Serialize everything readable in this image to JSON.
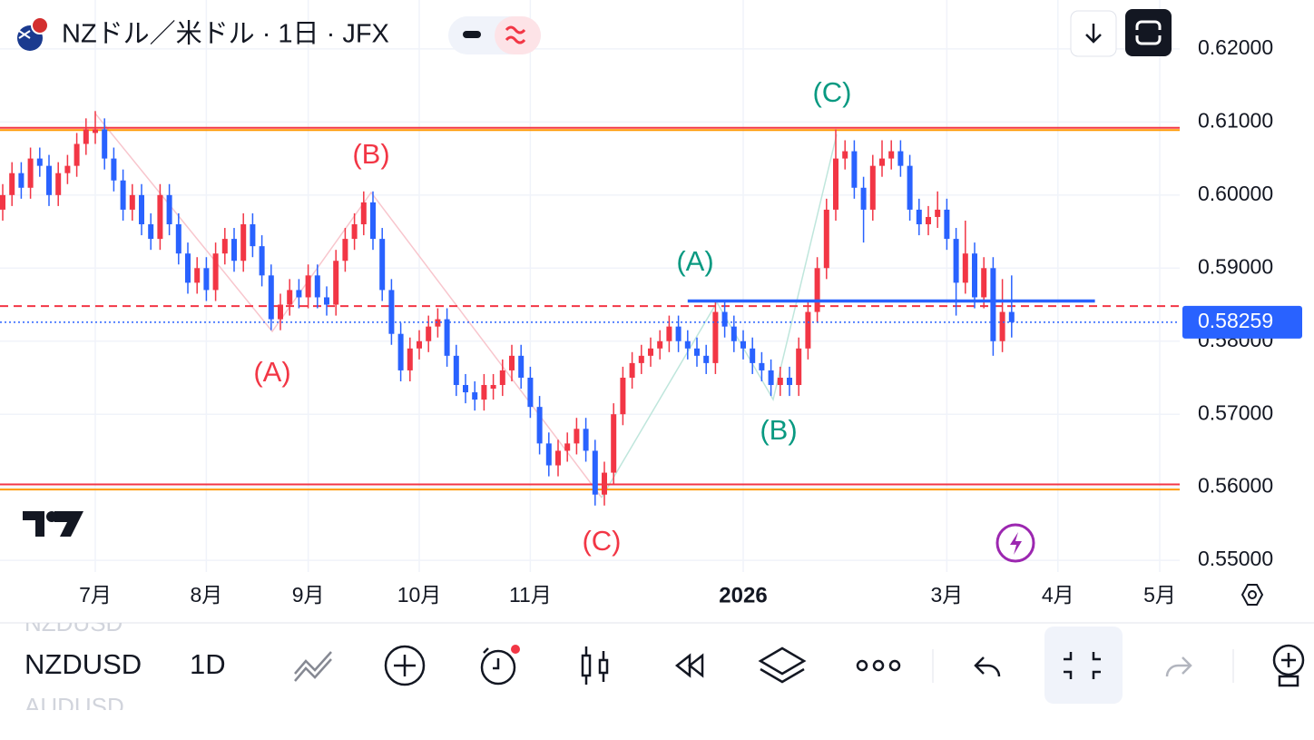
{
  "header": {
    "title": "NZドル／米ドル · 1日 · JFX"
  },
  "toolbar": {
    "prev_symbol": "NZDUSD",
    "symbol": "NZDUSD",
    "next_symbol": "AUDUSD",
    "interval": "1D"
  },
  "chart_data": {
    "type": "candlestick",
    "up_color": "#f23645",
    "down_color": "#2962ff",
    "grid": true,
    "ylim": [
      0.5484,
      0.6267
    ],
    "yticks": [
      {
        "value": 0.55,
        "label": "0.55000"
      },
      {
        "value": 0.56,
        "label": "0.56000"
      },
      {
        "value": 0.57,
        "label": "0.57000"
      },
      {
        "value": 0.58,
        "label": "0.58000"
      },
      {
        "value": 0.59,
        "label": "0.59000"
      },
      {
        "value": 0.6,
        "label": "0.60000"
      },
      {
        "value": 0.61,
        "label": "0.61000"
      },
      {
        "value": 0.62,
        "label": "0.62000"
      }
    ],
    "last_price": 0.58259,
    "categories": [
      null,
      null,
      null,
      null,
      null,
      null,
      null,
      null,
      null,
      null,
      "7月",
      null,
      null,
      null,
      null,
      null,
      null,
      null,
      null,
      null,
      null,
      null,
      "8月",
      null,
      null,
      null,
      null,
      null,
      null,
      null,
      null,
      null,
      null,
      "9月",
      null,
      null,
      null,
      null,
      null,
      null,
      null,
      null,
      null,
      null,
      null,
      "10月",
      null,
      null,
      null,
      null,
      null,
      null,
      null,
      null,
      null,
      null,
      null,
      "11月",
      null,
      null,
      null,
      null,
      null,
      null,
      null,
      null,
      null,
      null,
      null,
      null,
      null,
      null,
      null,
      null,
      null,
      null,
      null,
      null,
      null,
      null,
      "2026",
      null,
      null,
      null,
      null,
      null,
      null,
      null,
      null,
      null,
      null,
      null,
      null,
      null,
      null,
      null,
      null,
      null,
      null,
      null,
      null,
      null,
      "3月",
      null,
      null,
      null,
      null,
      null,
      null,
      null,
      null,
      null,
      null,
      null,
      "4月",
      null,
      null,
      null,
      null,
      null,
      null,
      null,
      null,
      null,
      null,
      "5月"
    ],
    "candles": [
      [
        0.598,
        0.6015,
        0.5965,
        0.6
      ],
      [
        0.6,
        0.6045,
        0.5985,
        0.603
      ],
      [
        0.603,
        0.6045,
        0.5995,
        0.601
      ],
      [
        0.601,
        0.6065,
        0.5995,
        0.605
      ],
      [
        0.605,
        0.6065,
        0.6025,
        0.604
      ],
      [
        0.604,
        0.6055,
        0.5985,
        0.6
      ],
      [
        0.6,
        0.6045,
        0.5985,
        0.603
      ],
      [
        0.603,
        0.6055,
        0.6015,
        0.604
      ],
      [
        0.604,
        0.6085,
        0.6025,
        0.607
      ],
      [
        0.607,
        0.6105,
        0.6055,
        0.609
      ],
      [
        0.6085,
        0.6115,
        0.607,
        0.609
      ],
      [
        0.609,
        0.6105,
        0.6035,
        0.605
      ],
      [
        0.605,
        0.6065,
        0.6005,
        0.602
      ],
      [
        0.602,
        0.6035,
        0.5965,
        0.598
      ],
      [
        0.598,
        0.6015,
        0.5965,
        0.6
      ],
      [
        0.6,
        0.6015,
        0.5945,
        0.596
      ],
      [
        0.596,
        0.5975,
        0.5925,
        0.594
      ],
      [
        0.594,
        0.6015,
        0.5925,
        0.6
      ],
      [
        0.6,
        0.6015,
        0.5945,
        0.596
      ],
      [
        0.596,
        0.5975,
        0.5905,
        0.592
      ],
      [
        0.592,
        0.5935,
        0.5865,
        0.588
      ],
      [
        0.588,
        0.5915,
        0.5865,
        0.59
      ],
      [
        0.59,
        0.5915,
        0.5855,
        0.587
      ],
      [
        0.587,
        0.5935,
        0.5855,
        0.592
      ],
      [
        0.592,
        0.5955,
        0.5905,
        0.594
      ],
      [
        0.594,
        0.5955,
        0.5895,
        0.591
      ],
      [
        0.591,
        0.5975,
        0.5895,
        0.596
      ],
      [
        0.596,
        0.5975,
        0.5915,
        0.593
      ],
      [
        0.593,
        0.5945,
        0.5875,
        0.589
      ],
      [
        0.589,
        0.5905,
        0.5815,
        0.583
      ],
      [
        0.583,
        0.5865,
        0.5815,
        0.585
      ],
      [
        0.585,
        0.5885,
        0.5835,
        0.587
      ],
      [
        0.587,
        0.5885,
        0.5845,
        0.586
      ],
      [
        0.586,
        0.5905,
        0.5845,
        0.589
      ],
      [
        0.589,
        0.5905,
        0.5845,
        0.586
      ],
      [
        0.586,
        0.5875,
        0.5835,
        0.585
      ],
      [
        0.585,
        0.5925,
        0.5835,
        0.591
      ],
      [
        0.591,
        0.5955,
        0.5895,
        0.594
      ],
      [
        0.594,
        0.5975,
        0.5925,
        0.596
      ],
      [
        0.596,
        0.6005,
        0.5945,
        0.599
      ],
      [
        0.599,
        0.6005,
        0.5925,
        0.594
      ],
      [
        0.594,
        0.5955,
        0.5855,
        0.587
      ],
      [
        0.587,
        0.5885,
        0.5795,
        0.581
      ],
      [
        0.581,
        0.5825,
        0.5745,
        0.576
      ],
      [
        0.576,
        0.5805,
        0.5745,
        0.579
      ],
      [
        0.579,
        0.5815,
        0.5775,
        0.58
      ],
      [
        0.58,
        0.5835,
        0.5785,
        0.582
      ],
      [
        0.582,
        0.5845,
        0.5805,
        0.583
      ],
      [
        0.583,
        0.5845,
        0.5765,
        0.578
      ],
      [
        0.578,
        0.5795,
        0.5725,
        0.574
      ],
      [
        0.574,
        0.5755,
        0.5715,
        0.573
      ],
      [
        0.573,
        0.5745,
        0.5705,
        0.572
      ],
      [
        0.572,
        0.5755,
        0.5705,
        0.574
      ],
      [
        0.5735,
        0.5755,
        0.572,
        0.574
      ],
      [
        0.574,
        0.5775,
        0.5725,
        0.576
      ],
      [
        0.576,
        0.5795,
        0.5745,
        0.578
      ],
      [
        0.578,
        0.5795,
        0.5735,
        0.575
      ],
      [
        0.575,
        0.5765,
        0.5695,
        0.571
      ],
      [
        0.571,
        0.5725,
        0.5645,
        0.566
      ],
      [
        0.566,
        0.5675,
        0.5615,
        0.563
      ],
      [
        0.563,
        0.5665,
        0.5615,
        0.565
      ],
      [
        0.565,
        0.5675,
        0.5635,
        0.566
      ],
      [
        0.566,
        0.5695,
        0.5645,
        0.568
      ],
      [
        0.568,
        0.5695,
        0.5635,
        0.565
      ],
      [
        0.565,
        0.5665,
        0.5575,
        0.559
      ],
      [
        0.559,
        0.5635,
        0.5575,
        0.562
      ],
      [
        0.562,
        0.5715,
        0.5605,
        0.57
      ],
      [
        0.57,
        0.5765,
        0.5685,
        0.575
      ],
      [
        0.575,
        0.5785,
        0.5735,
        0.577
      ],
      [
        0.577,
        0.5795,
        0.5755,
        0.578
      ],
      [
        0.578,
        0.5805,
        0.5765,
        0.579
      ],
      [
        0.579,
        0.5815,
        0.5775,
        0.58
      ],
      [
        0.58,
        0.5835,
        0.5785,
        0.582
      ],
      [
        0.582,
        0.5835,
        0.5785,
        0.58
      ],
      [
        0.58,
        0.5815,
        0.5775,
        0.579
      ],
      [
        0.579,
        0.5805,
        0.5765,
        0.578
      ],
      [
        0.578,
        0.5795,
        0.5755,
        0.577
      ],
      [
        0.577,
        0.5855,
        0.5755,
        0.584
      ],
      [
        0.584,
        0.5855,
        0.5805,
        0.582
      ],
      [
        0.582,
        0.5835,
        0.5785,
        0.58
      ],
      [
        0.58,
        0.5815,
        0.5775,
        0.579
      ],
      [
        0.579,
        0.5805,
        0.5755,
        0.577
      ],
      [
        0.577,
        0.5785,
        0.5745,
        0.576
      ],
      [
        0.576,
        0.5775,
        0.5725,
        0.574
      ],
      [
        0.574,
        0.5765,
        0.5725,
        0.575
      ],
      [
        0.575,
        0.5765,
        0.5725,
        0.574
      ],
      [
        0.574,
        0.5805,
        0.5725,
        0.579
      ],
      [
        0.579,
        0.5855,
        0.5775,
        0.584
      ],
      [
        0.584,
        0.5915,
        0.5825,
        0.59
      ],
      [
        0.59,
        0.5995,
        0.5885,
        0.598
      ],
      [
        0.598,
        0.609,
        0.5965,
        0.605
      ],
      [
        0.605,
        0.6075,
        0.6035,
        0.606
      ],
      [
        0.606,
        0.6075,
        0.5995,
        0.601
      ],
      [
        0.601,
        0.6025,
        0.5935,
        0.598
      ],
      [
        0.598,
        0.6055,
        0.5965,
        0.604
      ],
      [
        0.604,
        0.6075,
        0.6025,
        0.605
      ],
      [
        0.605,
        0.6075,
        0.6035,
        0.606
      ],
      [
        0.606,
        0.6075,
        0.6025,
        0.604
      ],
      [
        0.604,
        0.6055,
        0.5965,
        0.598
      ],
      [
        0.598,
        0.5995,
        0.5945,
        0.596
      ],
      [
        0.596,
        0.5985,
        0.5945,
        0.597
      ],
      [
        0.597,
        0.6005,
        0.5955,
        0.598
      ],
      [
        0.598,
        0.5995,
        0.5925,
        0.594
      ],
      [
        0.594,
        0.5955,
        0.5835,
        0.588
      ],
      [
        0.588,
        0.5965,
        0.5865,
        0.592
      ],
      [
        0.592,
        0.5935,
        0.5845,
        0.586
      ],
      [
        0.586,
        0.5915,
        0.5845,
        0.59
      ],
      [
        0.59,
        0.5915,
        0.578,
        0.58
      ],
      [
        0.58,
        0.5885,
        0.5785,
        0.584
      ],
      [
        0.584,
        0.589,
        0.5805,
        0.5826
      ],
      null,
      null,
      null,
      null,
      null,
      null,
      null,
      null,
      null,
      null,
      null,
      null,
      null,
      null,
      null,
      null
    ],
    "levels": [
      {
        "value": 0.6092,
        "color": "#f23645",
        "style": "solid"
      },
      {
        "value": 0.6089,
        "color": "#ff9800",
        "style": "solid"
      },
      {
        "value": 0.5604,
        "color": "#f23645",
        "style": "solid"
      },
      {
        "value": 0.5597,
        "color": "#ff9800",
        "style": "solid"
      },
      {
        "value": 0.5848,
        "color": "#f23645",
        "style": "dashed"
      }
    ],
    "segment": {
      "value": 0.5855,
      "x": [
        74,
        118
      ],
      "color": "#2962ff"
    },
    "annotations": [
      {
        "text": "(A)",
        "color": "#f23645"
      },
      {
        "text": "(B)",
        "color": "#f23645"
      },
      {
        "text": "(C)",
        "color": "#f23645"
      },
      {
        "text": "(A)",
        "color": "#089981"
      },
      {
        "text": "(B)",
        "color": "#089981"
      },
      {
        "text": "(C)",
        "color": "#089981"
      }
    ]
  }
}
